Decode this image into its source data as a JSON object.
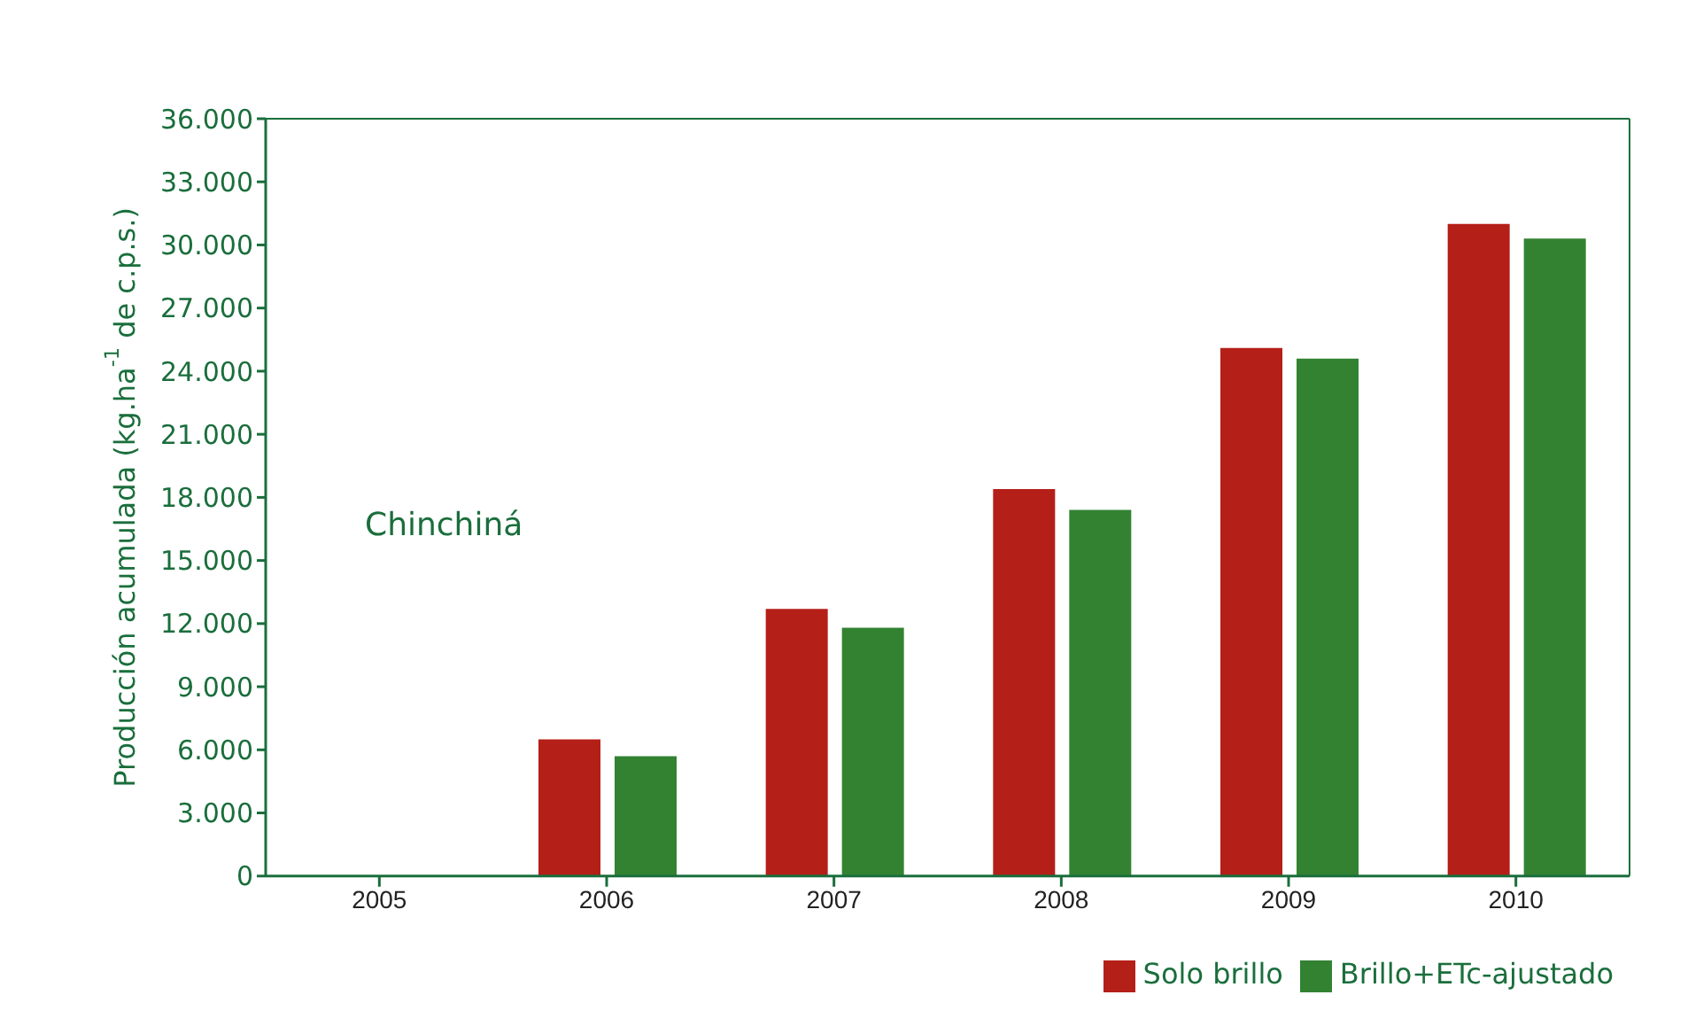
{
  "chart_data": {
    "type": "bar",
    "ylabel": "Producción acumulada (kg.ha$^{-1}$ de c.p.s.)",
    "categories": [
      "2005",
      "2006",
      "2007",
      "2008",
      "2009",
      "2010"
    ],
    "series": [
      {
        "name": "Solo brillo",
        "color": "#b41f18",
        "values": [
          0,
          6500,
          12700,
          18400,
          25100,
          31000
        ]
      },
      {
        "name": "Brillo+ETc-ajustado",
        "color": "#328232",
        "values": [
          0,
          5700,
          11800,
          17400,
          24600,
          30300
        ]
      }
    ],
    "ylim": [
      0,
      36000
    ],
    "yticks": [
      {
        "value": 0,
        "label": "0"
      },
      {
        "value": 3000,
        "label": "3.000"
      },
      {
        "value": 6000,
        "label": "6.000"
      },
      {
        "value": 9000,
        "label": "9.000"
      },
      {
        "value": 12000,
        "label": "12.000"
      },
      {
        "value": 15000,
        "label": "15.000"
      },
      {
        "value": 18000,
        "label": "18.000"
      },
      {
        "value": 21000,
        "label": "21.000"
      },
      {
        "value": 24000,
        "label": "24.000"
      },
      {
        "value": 27000,
        "label": "27.000"
      },
      {
        "value": 30000,
        "label": "30.000"
      },
      {
        "value": 33000,
        "label": "33.000"
      },
      {
        "value": 36000,
        "label": "36.000"
      }
    ],
    "annotations": [
      "Chinchiná"
    ],
    "grid": false,
    "legend": "bottom right"
  }
}
